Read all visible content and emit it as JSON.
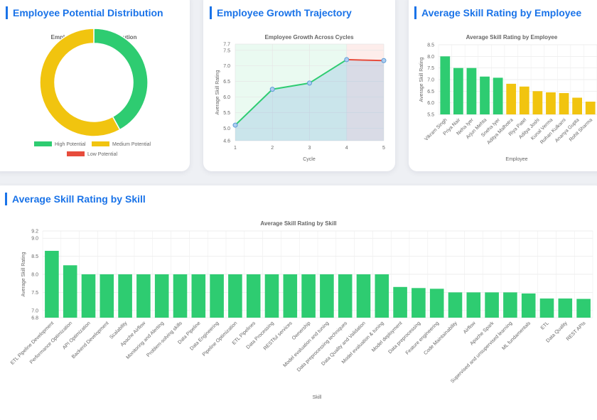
{
  "cards": {
    "potential": {
      "title": "Employee Potential Distribution"
    },
    "growth": {
      "title": "Employee Growth Trajectory"
    },
    "employee_rating": {
      "title": "Average Skill Rating by Employee"
    },
    "skill_rating": {
      "title": "Average Skill Rating by Skill"
    }
  },
  "colors": {
    "accent": "#1a73e8",
    "green": "#2ecc71",
    "yellow": "#f1c40f",
    "red": "#e74c3c",
    "blue": "#5b9bd5"
  },
  "chart_data": [
    {
      "type": "pie",
      "title": "Employee Potential Distribution",
      "labels": [
        "High Potential",
        "Medium Potential",
        "Low Potential"
      ],
      "values": [
        42,
        58,
        0
      ],
      "colors": [
        "#2ecc71",
        "#f1c40f",
        "#e74c3c"
      ],
      "donut": true,
      "legend": "bottom"
    },
    {
      "type": "line",
      "title": "Employee Growth Across Cycles",
      "xlabel": "Cycle",
      "ylabel": "Average Skill Rating",
      "x": [
        1,
        2,
        3,
        4,
        5
      ],
      "values": [
        5.1,
        6.25,
        6.45,
        7.2,
        7.17
      ],
      "ylim": [
        4.6,
        7.7
      ],
      "yticks": [
        4.6,
        5.0,
        5.5,
        6.0,
        6.5,
        7.0,
        7.5,
        7.7
      ],
      "grid": true
    },
    {
      "type": "bar",
      "title": "Average Skill Rating by Employee",
      "xlabel": "Employee",
      "ylabel": "Average Skill Rating",
      "categories": [
        "Vikram Singh",
        "Priya Nair",
        "Neha Iyer",
        "Arjun Mehta",
        "Sneha Iyer",
        "Aditya Malhotra",
        "Riya Patel",
        "Aditya Joshi",
        "Kunal Verma",
        "Rohan Kulkarni",
        "Ananya Gupta",
        "Rohit Sharma"
      ],
      "values": [
        8.0,
        7.5,
        7.5,
        7.13,
        7.08,
        6.82,
        6.7,
        6.5,
        6.45,
        6.42,
        6.22,
        6.05
      ],
      "colors": [
        "#2ecc71",
        "#2ecc71",
        "#2ecc71",
        "#2ecc71",
        "#2ecc71",
        "#f1c40f",
        "#f1c40f",
        "#f1c40f",
        "#f1c40f",
        "#f1c40f",
        "#f1c40f",
        "#f1c40f"
      ],
      "ylim": [
        5.5,
        8.5
      ],
      "yticks": [
        5.5,
        6.0,
        6.5,
        7.0,
        7.5,
        8.0,
        8.5
      ],
      "grid": true
    },
    {
      "type": "bar",
      "title": "Average Skill Rating by Skill",
      "xlabel": "Skill",
      "ylabel": "Average Skill Rating",
      "categories": [
        "ETL Pipeline Development",
        "Performance Optimization",
        "API Optimization",
        "Backend Development",
        "Scalability",
        "Apache Airflow",
        "Monitoring and Alerting",
        "Problem-solving skills",
        "Data Pipeline",
        "Data Engineering",
        "Pipeline Optimization",
        "ETL Pipelines",
        "Data Processing",
        "RESTful services",
        "Ownership",
        "Model evaluation and tuning",
        "Data preprocessing techniques",
        "Data Quality and Validation",
        "Model evaluation & tuning",
        "Model deployment",
        "Data preprocessing",
        "Feature engineering",
        "Code Maintainability",
        "Airflow",
        "Apache Spark",
        "Supervised and unsupervised learning",
        "ML fundamentals",
        "ETL",
        "Data Quality",
        "REST APIs"
      ],
      "values": [
        8.65,
        8.25,
        8.0,
        8.0,
        8.0,
        8.0,
        8.0,
        8.0,
        8.0,
        8.0,
        8.0,
        8.0,
        8.0,
        8.0,
        8.0,
        8.0,
        8.0,
        8.0,
        8.0,
        7.65,
        7.62,
        7.6,
        7.5,
        7.5,
        7.5,
        7.5,
        7.47,
        7.33,
        7.33,
        7.32
      ],
      "ylim": [
        6.8,
        9.2
      ],
      "yticks": [
        6.8,
        7.0,
        7.5,
        8.0,
        8.5,
        9.0,
        9.2
      ],
      "color": "#2ecc71",
      "grid": true
    }
  ]
}
